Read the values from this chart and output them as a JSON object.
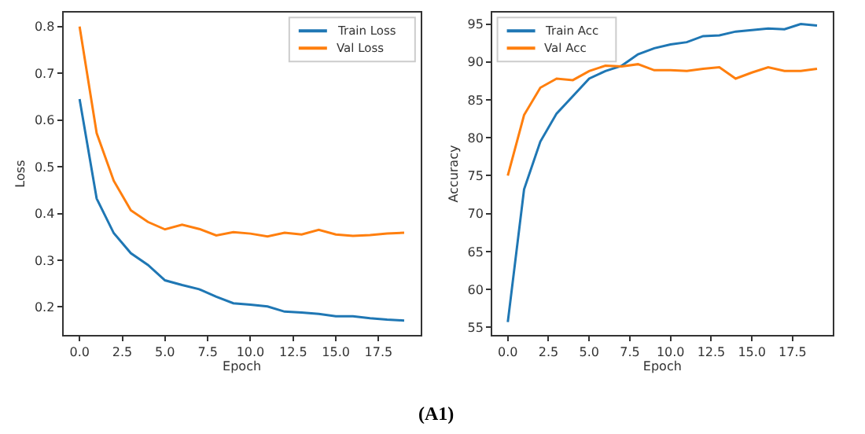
{
  "chart_data": [
    {
      "type": "line",
      "xlabel": "Epoch",
      "ylabel": "Loss",
      "x": [
        0,
        1,
        2,
        3,
        4,
        5,
        6,
        7,
        8,
        9,
        10,
        11,
        12,
        13,
        14,
        15,
        16,
        17,
        18,
        19
      ],
      "series": [
        {
          "name": "Train Loss",
          "color": "#1f77b4",
          "values": [
            0.645,
            0.432,
            0.358,
            0.315,
            0.29,
            0.257,
            0.247,
            0.238,
            0.222,
            0.208,
            0.205,
            0.201,
            0.19,
            0.188,
            0.185,
            0.18,
            0.18,
            0.176,
            0.173,
            0.171
          ]
        },
        {
          "name": "Val Loss",
          "color": "#ff7f0e",
          "values": [
            0.8,
            0.572,
            0.47,
            0.407,
            0.382,
            0.366,
            0.376,
            0.367,
            0.353,
            0.36,
            0.357,
            0.351,
            0.359,
            0.355,
            0.365,
            0.355,
            0.352,
            0.354,
            0.357,
            0.359
          ]
        }
      ],
      "xlim": [
        -0.95,
        19.95
      ],
      "xticks": [
        {
          "value": 0,
          "label": "0.0"
        },
        {
          "value": 2.5,
          "label": "2.5"
        },
        {
          "value": 5,
          "label": "5.0"
        },
        {
          "value": 7.5,
          "label": "7.5"
        },
        {
          "value": 10,
          "label": "10.0"
        },
        {
          "value": 12.5,
          "label": "12.5"
        },
        {
          "value": 15,
          "label": "15.0"
        },
        {
          "value": 17.5,
          "label": "17.5"
        }
      ],
      "ylim": [
        0.14,
        0.83
      ],
      "yticks": [
        0.2,
        0.3,
        0.4,
        0.5,
        0.6,
        0.7,
        0.8
      ],
      "legend": "top right"
    },
    {
      "type": "line",
      "xlabel": "Epoch",
      "ylabel": "Accuracy",
      "x": [
        0,
        1,
        2,
        3,
        4,
        5,
        6,
        7,
        8,
        9,
        10,
        11,
        12,
        13,
        14,
        15,
        16,
        17,
        18,
        19
      ],
      "series": [
        {
          "name": "Train Acc",
          "color": "#1f77b4",
          "values": [
            55.7,
            73.2,
            79.5,
            83.2,
            85.5,
            87.8,
            88.8,
            89.5,
            91.0,
            91.8,
            92.3,
            92.6,
            93.4,
            93.5,
            94.0,
            94.2,
            94.4,
            94.3,
            95.0,
            94.8
          ]
        },
        {
          "name": "Val Acc",
          "color": "#ff7f0e",
          "values": [
            75.0,
            83.0,
            86.6,
            87.8,
            87.6,
            88.8,
            89.5,
            89.4,
            89.7,
            88.9,
            88.9,
            88.8,
            89.1,
            89.3,
            87.8,
            88.6,
            89.3,
            88.8,
            88.8,
            89.1
          ]
        }
      ],
      "xlim": [
        -0.95,
        19.95
      ],
      "xticks": [
        {
          "value": 0,
          "label": "0.0"
        },
        {
          "value": 2.5,
          "label": "2.5"
        },
        {
          "value": 5,
          "label": "5.0"
        },
        {
          "value": 7.5,
          "label": "7.5"
        },
        {
          "value": 10,
          "label": "10.0"
        },
        {
          "value": 12.5,
          "label": "12.5"
        },
        {
          "value": 15,
          "label": "15.0"
        },
        {
          "value": 17.5,
          "label": "17.5"
        }
      ],
      "ylim": [
        54.0,
        96.5
      ],
      "yticks": [
        55,
        60,
        65,
        70,
        75,
        80,
        85,
        90,
        95
      ],
      "legend": "top left",
      "annotations": [
        "(A1)"
      ]
    }
  ]
}
